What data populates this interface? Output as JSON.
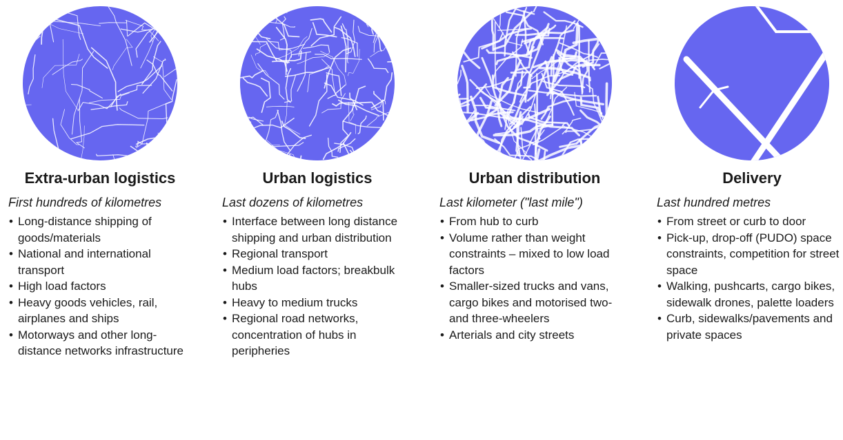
{
  "columns": [
    {
      "title": "Extra-urban logistics",
      "subtitle": "First hundreds of kilometres",
      "bullets": [
        "Long-distance shipping of goods/materials",
        "National and international transport",
        "High load factors",
        "Heavy goods vehicles, rail, airplanes and ships",
        "Motorways and other long-distance networks infrastructure"
      ]
    },
    {
      "title": "Urban logistics",
      "subtitle": "Last dozens of kilometres",
      "bullets": [
        "Interface between long distance shipping and urban distribution",
        "Regional transport",
        "Medium load factors; breakbulk hubs",
        "Heavy to medium trucks",
        "Regional road networks, concentration of hubs in peripheries"
      ]
    },
    {
      "title": "Urban distribution",
      "subtitle": "Last kilometer (\"last mile\")",
      "bullets": [
        "From hub to curb",
        "Volume rather than weight constraints – mixed to low load factors",
        "Smaller-sized trucks and vans, cargo bikes and motorised two- and three-wheelers",
        "Arterials and city streets"
      ]
    },
    {
      "title": "Delivery",
      "subtitle": "Last hundred metres",
      "bullets": [
        "From street or curb to door",
        "Pick-up, drop-off (PUDO) space constraints, competition for street space",
        "Walking, pushcarts, cargo bikes, sidewalk drones, palette loaders",
        "Curb, sidewalks/pavements and private spaces"
      ]
    }
  ]
}
